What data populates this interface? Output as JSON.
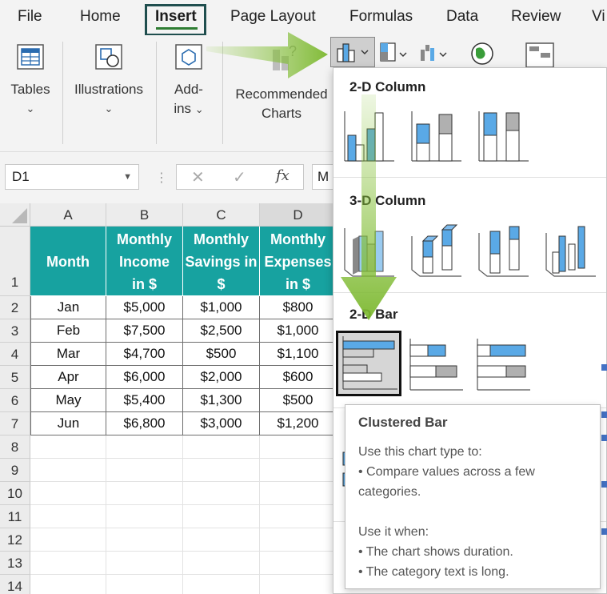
{
  "tabs": [
    {
      "label": "File",
      "active": false
    },
    {
      "label": "Home",
      "active": false
    },
    {
      "label": "Insert",
      "active": true
    },
    {
      "label": "Page Layout",
      "active": false
    },
    {
      "label": "Formulas",
      "active": false
    },
    {
      "label": "Data",
      "active": false
    },
    {
      "label": "Review",
      "active": false
    },
    {
      "label": "Vi",
      "active": false
    }
  ],
  "ribbon": {
    "tables": {
      "label": "Tables",
      "icon": "table-icon"
    },
    "illustrations": {
      "label": "Illustrations",
      "icon": "shapes-icon"
    },
    "addins": {
      "line1": "Add-",
      "line2": "ins",
      "icon": "addin-cube-icon"
    },
    "recommended": {
      "line1": "Recommended",
      "line2": "Charts",
      "icon": "recommended-charts-icon"
    },
    "column_chart_button": {
      "icon": "column-chart-icon",
      "state": "open"
    }
  },
  "formula_bar": {
    "name_box": "D1",
    "cancel_icon": "✕",
    "enter_icon": "✓",
    "fx_icon": "fx",
    "content": "M"
  },
  "sheet": {
    "columns": [
      "A",
      "B",
      "C",
      "D"
    ],
    "rows": [
      "1",
      "2",
      "3",
      "4",
      "5",
      "6",
      "7",
      "8",
      "9",
      "10",
      "11",
      "12",
      "13",
      "14"
    ],
    "headers": [
      {
        "lines": [
          "Month"
        ]
      },
      {
        "lines": [
          "Monthly",
          "Income",
          "in $"
        ]
      },
      {
        "lines": [
          "Monthly",
          "Savings in",
          "$"
        ]
      },
      {
        "lines": [
          "Monthly",
          "Expenses",
          "in $"
        ]
      }
    ],
    "data": [
      [
        "Jan",
        "$5,000",
        "$1,000",
        "$800"
      ],
      [
        "Feb",
        "$7,500",
        "$2,500",
        "$1,000"
      ],
      [
        "Mar",
        "$4,700",
        "$500",
        "$1,100"
      ],
      [
        "Apr",
        "$6,000",
        "$2,000",
        "$600"
      ],
      [
        "May",
        "$5,400",
        "$1,300",
        "$500"
      ],
      [
        "Jun",
        "$6,800",
        "$3,000",
        "$1,200"
      ]
    ],
    "header_color": "#17a2a0"
  },
  "dropdown": {
    "sections": [
      {
        "title": "2-D Column"
      },
      {
        "title": "3-D Column"
      },
      {
        "title": "2-D Bar"
      }
    ],
    "selected": "Clustered Bar",
    "accent_color": "#5aa9e6"
  },
  "tooltip": {
    "title": "Clustered Bar",
    "line1": "Use this chart type to:",
    "line2": "• Compare values across a few",
    "line3": "categories.",
    "line4": "Use it when:",
    "line5": "• The chart shows duration.",
    "line6": "• The category text is long."
  }
}
